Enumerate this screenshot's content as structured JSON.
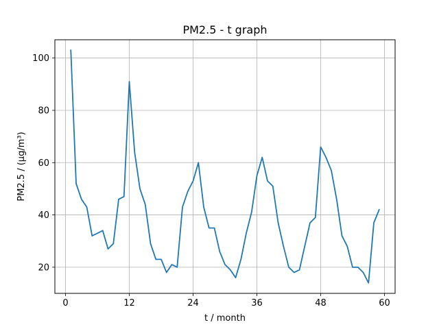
{
  "chart_data": {
    "type": "line",
    "title": "PM2.5 - t graph",
    "xlabel": "t / month",
    "ylabel": "PM2.5 / (μg/m³)",
    "xlim": [
      -2,
      62
    ],
    "ylim": [
      10,
      107
    ],
    "xticks": [
      0,
      12,
      24,
      36,
      48,
      60
    ],
    "yticks": [
      20,
      40,
      60,
      80,
      100
    ],
    "grid": true,
    "series": [
      {
        "color": "#1f77b4",
        "x": [
          1,
          2,
          3,
          4,
          5,
          6,
          7,
          8,
          9,
          10,
          11,
          12,
          13,
          14,
          15,
          16,
          17,
          18,
          19,
          20,
          21,
          22,
          23,
          24,
          25,
          26,
          27,
          28,
          29,
          30,
          31,
          32,
          33,
          34,
          35,
          36,
          37,
          38,
          39,
          40,
          41,
          42,
          43,
          44,
          45,
          46,
          47,
          48,
          49,
          50,
          51,
          52,
          53,
          54,
          55,
          56,
          57,
          58,
          59
        ],
        "values": [
          103,
          52,
          46,
          43,
          32,
          33,
          34,
          27,
          29,
          46,
          47,
          91,
          64,
          50,
          44,
          29,
          23,
          23,
          18,
          21,
          20,
          43,
          49,
          53,
          60,
          43,
          35,
          35,
          26,
          21,
          19,
          16,
          23,
          33,
          41,
          55,
          62,
          53,
          51,
          37,
          28,
          20,
          18,
          19,
          28,
          37,
          39,
          66,
          62,
          57,
          46,
          32,
          28,
          20,
          20,
          18,
          14,
          37,
          42
        ]
      }
    ]
  }
}
